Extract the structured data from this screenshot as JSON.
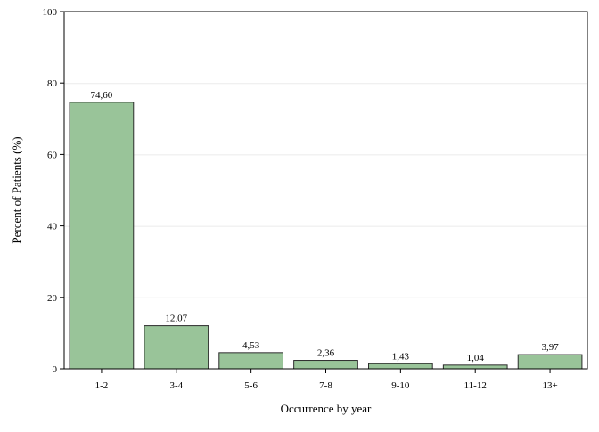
{
  "chart_data": {
    "type": "bar",
    "title": "",
    "xlabel": "Occurrence by year",
    "ylabel": "Percent of Patients (%)",
    "categories": [
      "1-2",
      "3-4",
      "5-6",
      "7-8",
      "9-10",
      "11-12",
      "13+"
    ],
    "values": [
      74.6,
      12.07,
      4.53,
      2.36,
      1.43,
      1.04,
      3.97
    ],
    "value_labels": [
      "74,60",
      "12,07",
      "4,53",
      "2,36",
      "1,43",
      "1,04",
      "3,97"
    ],
    "ylim": [
      0,
      100
    ],
    "yticks": [
      0,
      20,
      40,
      60,
      80,
      100
    ],
    "ytick_labels": [
      "0",
      "20",
      "40",
      "60",
      "80",
      "100"
    ],
    "grid": true,
    "legend": "none",
    "colors": {
      "bar_fill": "#99c499",
      "bar_stroke": "#2b2b2b",
      "grid": "#ebebeb",
      "axis": "#000000"
    }
  }
}
